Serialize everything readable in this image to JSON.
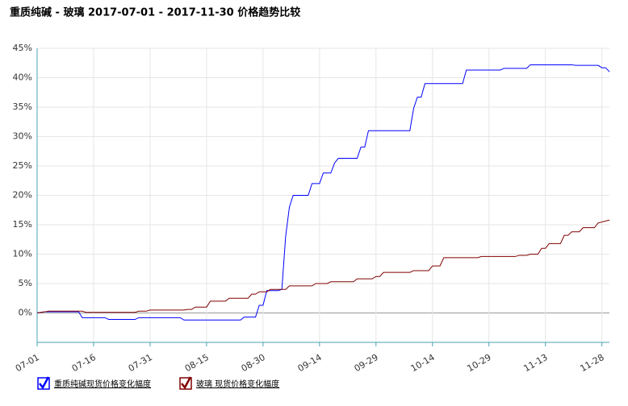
{
  "chart_data": {
    "type": "line",
    "title": "重质纯碱 - 玻璃 2017-07-01 - 2017-11-30 价格趋势比较",
    "xlim": [
      "07-01",
      "11-30"
    ],
    "xticks": [
      "07-01",
      "07-16",
      "07-31",
      "08-15",
      "08-30",
      "09-14",
      "09-29",
      "10-14",
      "10-29",
      "11-13",
      "11-28"
    ],
    "ylim": [
      -5,
      45
    ],
    "yticks": [
      {
        "value": 0,
        "label": "0%"
      },
      {
        "value": 5,
        "label": "5%"
      },
      {
        "value": 10,
        "label": "10%"
      },
      {
        "value": 15,
        "label": "15%"
      },
      {
        "value": 20,
        "label": "20%"
      },
      {
        "value": 25,
        "label": "25%"
      },
      {
        "value": 30,
        "label": "30%"
      },
      {
        "value": 35,
        "label": "35%"
      },
      {
        "value": 40,
        "label": "40%"
      },
      {
        "value": 45,
        "label": "45%"
      }
    ],
    "grid": true,
    "series": [
      {
        "name": "重质纯碱现货价格变化幅度",
        "color": "#0000ff",
        "x": [
          "07-01",
          "07-03",
          "07-12",
          "07-13",
          "07-19",
          "07-20",
          "07-27",
          "07-28",
          "08-08",
          "08-09",
          "08-24",
          "08-25",
          "08-28",
          "08-29",
          "08-30",
          "08-31",
          "09-03",
          "09-04",
          "09-05",
          "09-06",
          "09-07",
          "09-11",
          "09-12",
          "09-14",
          "09-15",
          "09-17",
          "09-18",
          "09-19",
          "09-24",
          "09-25",
          "09-26",
          "09-27",
          "10-08",
          "10-09",
          "10-10",
          "10-11",
          "10-12",
          "10-22",
          "10-23",
          "11-01",
          "11-02",
          "11-08",
          "11-09",
          "11-20",
          "11-21",
          "11-27",
          "11-28",
          "11-29",
          "11-30"
        ],
        "values": [
          0,
          0.2,
          0.2,
          -0.8,
          -0.8,
          -1.1,
          -1.1,
          -0.8,
          -0.8,
          -1.2,
          -1.2,
          -0.7,
          -0.7,
          1.3,
          1.3,
          3.8,
          3.8,
          4,
          13,
          18,
          20,
          20,
          22,
          22,
          23.8,
          23.8,
          25.5,
          26.3,
          26.3,
          28.2,
          28.2,
          31,
          31,
          34.8,
          36.7,
          36.7,
          39,
          39,
          41.3,
          41.3,
          41.6,
          41.6,
          42.2,
          42.2,
          42.1,
          42.1,
          41.7,
          41.7,
          41
        ]
      },
      {
        "name": "玻璃 现货价格变化幅度",
        "color": "#800000",
        "x": [
          "07-01",
          "07-04",
          "07-13",
          "07-14",
          "07-27",
          "07-28",
          "07-30",
          "07-31",
          "08-09",
          "08-10",
          "08-11",
          "08-12",
          "08-15",
          "08-16",
          "08-20",
          "08-21",
          "08-26",
          "08-27",
          "08-28",
          "08-29",
          "08-31",
          "09-01",
          "09-05",
          "09-06",
          "09-12",
          "09-13",
          "09-16",
          "09-17",
          "09-23",
          "09-24",
          "09-28",
          "09-29",
          "09-30",
          "10-01",
          "10-08",
          "10-09",
          "10-13",
          "10-14",
          "10-16",
          "10-17",
          "10-26",
          "10-27",
          "11-05",
          "11-06",
          "11-08",
          "11-09",
          "11-11",
          "11-12",
          "11-13",
          "11-14",
          "11-17",
          "11-18",
          "11-19",
          "11-20",
          "11-22",
          "11-23",
          "11-26",
          "11-27",
          "11-30"
        ],
        "values": [
          0,
          0.3,
          0.3,
          0.1,
          0.1,
          0.3,
          0.3,
          0.5,
          0.5,
          0.6,
          0.6,
          1,
          1,
          2,
          2,
          2.5,
          2.5,
          3.2,
          3.2,
          3.6,
          3.6,
          4,
          4,
          4.6,
          4.6,
          5,
          5,
          5.3,
          5.3,
          5.8,
          5.8,
          6.2,
          6.2,
          6.9,
          6.9,
          7.2,
          7.2,
          8,
          8,
          9.4,
          9.4,
          9.6,
          9.6,
          9.8,
          9.8,
          10,
          10,
          11,
          11,
          11.8,
          11.8,
          13.2,
          13.2,
          13.8,
          13.8,
          14.5,
          14.5,
          15.3,
          15.8
        ]
      }
    ]
  }
}
